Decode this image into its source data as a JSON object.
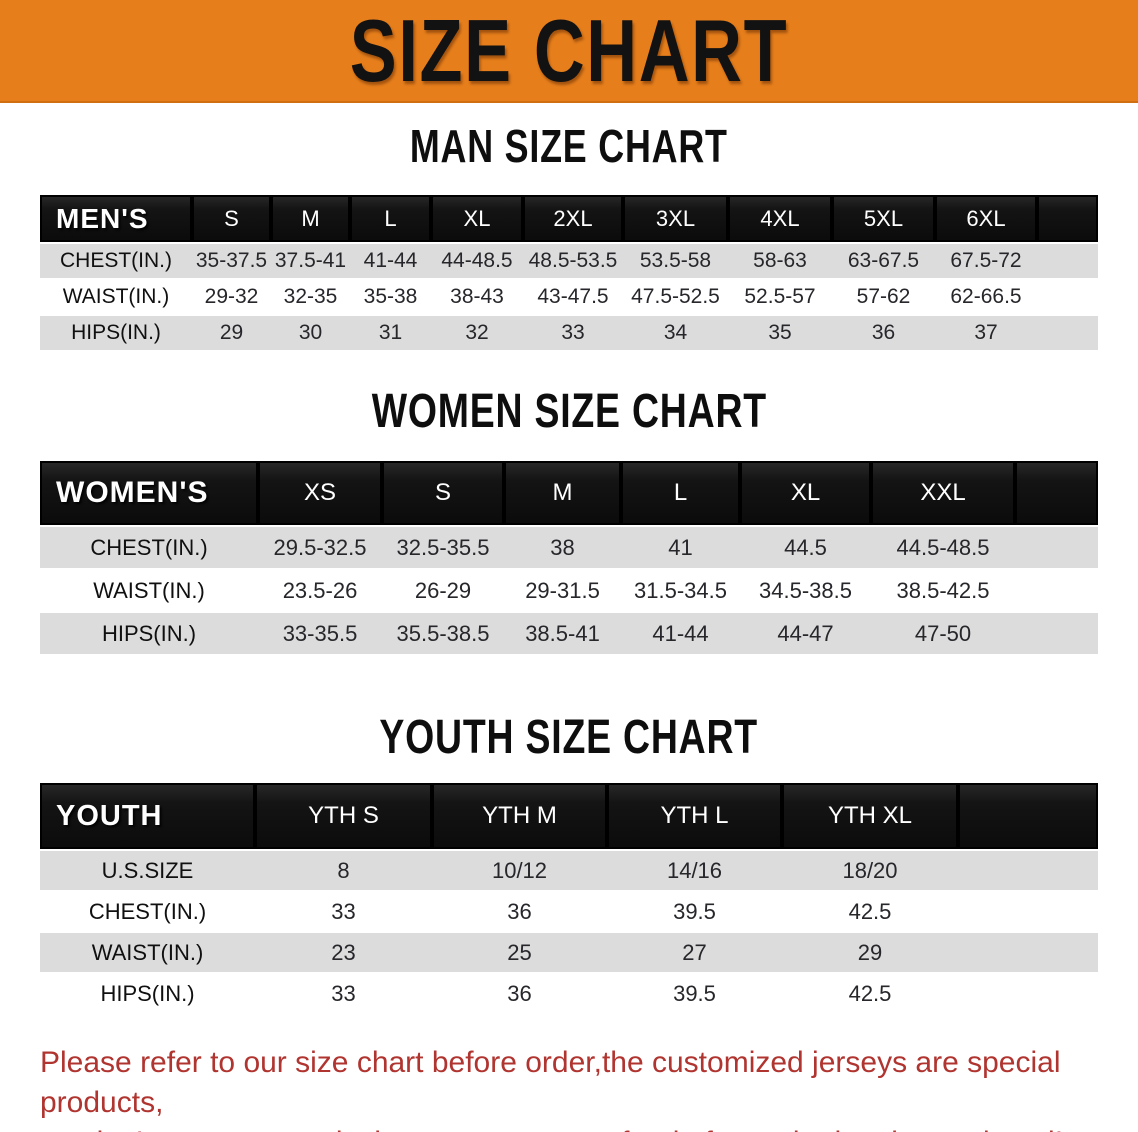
{
  "banner": {
    "title": "SIZE CHART"
  },
  "colors": {
    "banner_orange": "#E67E1B",
    "header_black": "#141414",
    "row_gray": "#DCDCDC",
    "footer_red": "#B0342F"
  },
  "sections": [
    {
      "id": "men",
      "heading": "MAN SIZE CHART",
      "header_label": "MEN'S",
      "columns": [
        "S",
        "M",
        "L",
        "XL",
        "2XL",
        "3XL",
        "4XL",
        "5XL",
        "6XL"
      ],
      "rows": [
        {
          "label": "CHEST(IN.)",
          "values": [
            "35-37.5",
            "37.5-41",
            "41-44",
            "44-48.5",
            "48.5-53.5",
            "53.5-58",
            "58-63",
            "63-67.5",
            "67.5-72"
          ]
        },
        {
          "label": "WAIST(IN.)",
          "values": [
            "29-32",
            "32-35",
            "35-38",
            "38-43",
            "43-47.5",
            "47.5-52.5",
            "52.5-57",
            "57-62",
            "62-66.5"
          ]
        },
        {
          "label": "HIPS(IN.)",
          "values": [
            "29",
            "30",
            "31",
            "32",
            "33",
            "34",
            "35",
            "36",
            "37"
          ]
        }
      ]
    },
    {
      "id": "women",
      "heading": "WOMEN SIZE CHART",
      "header_label": "WOMEN'S",
      "columns": [
        "XS",
        "S",
        "M",
        "L",
        "XL",
        "XXL"
      ],
      "rows": [
        {
          "label": "CHEST(IN.)",
          "values": [
            "29.5-32.5",
            "32.5-35.5",
            "38",
            "41",
            "44.5",
            "44.5-48.5"
          ]
        },
        {
          "label": "WAIST(IN.)",
          "values": [
            "23.5-26",
            "26-29",
            "29-31.5",
            "31.5-34.5",
            "34.5-38.5",
            "38.5-42.5"
          ]
        },
        {
          "label": "HIPS(IN.)",
          "values": [
            "33-35.5",
            "35.5-38.5",
            "38.5-41",
            "41-44",
            "44-47",
            "47-50"
          ]
        }
      ]
    },
    {
      "id": "youth",
      "heading": "YOUTH SIZE CHART",
      "header_label": "YOUTH",
      "columns": [
        "YTH S",
        "YTH M",
        "YTH L",
        "YTH XL"
      ],
      "rows": [
        {
          "label": "U.S.SIZE",
          "values": [
            "8",
            "10/12",
            "14/16",
            "18/20"
          ]
        },
        {
          "label": "CHEST(IN.)",
          "values": [
            "33",
            "36",
            "39.5",
            "42.5"
          ]
        },
        {
          "label": "WAIST(IN.)",
          "values": [
            "23",
            "25",
            "27",
            "29"
          ]
        },
        {
          "label": "HIPS(IN.)",
          "values": [
            "33",
            "36",
            "39.5",
            "42.5"
          ]
        }
      ]
    }
  ],
  "footer": {
    "lines": [
      "Please refer to our size chart before order,the customized jerseys are special products,",
      "we don't accept cancel, change, teturn or refund after order has been placed!"
    ]
  }
}
